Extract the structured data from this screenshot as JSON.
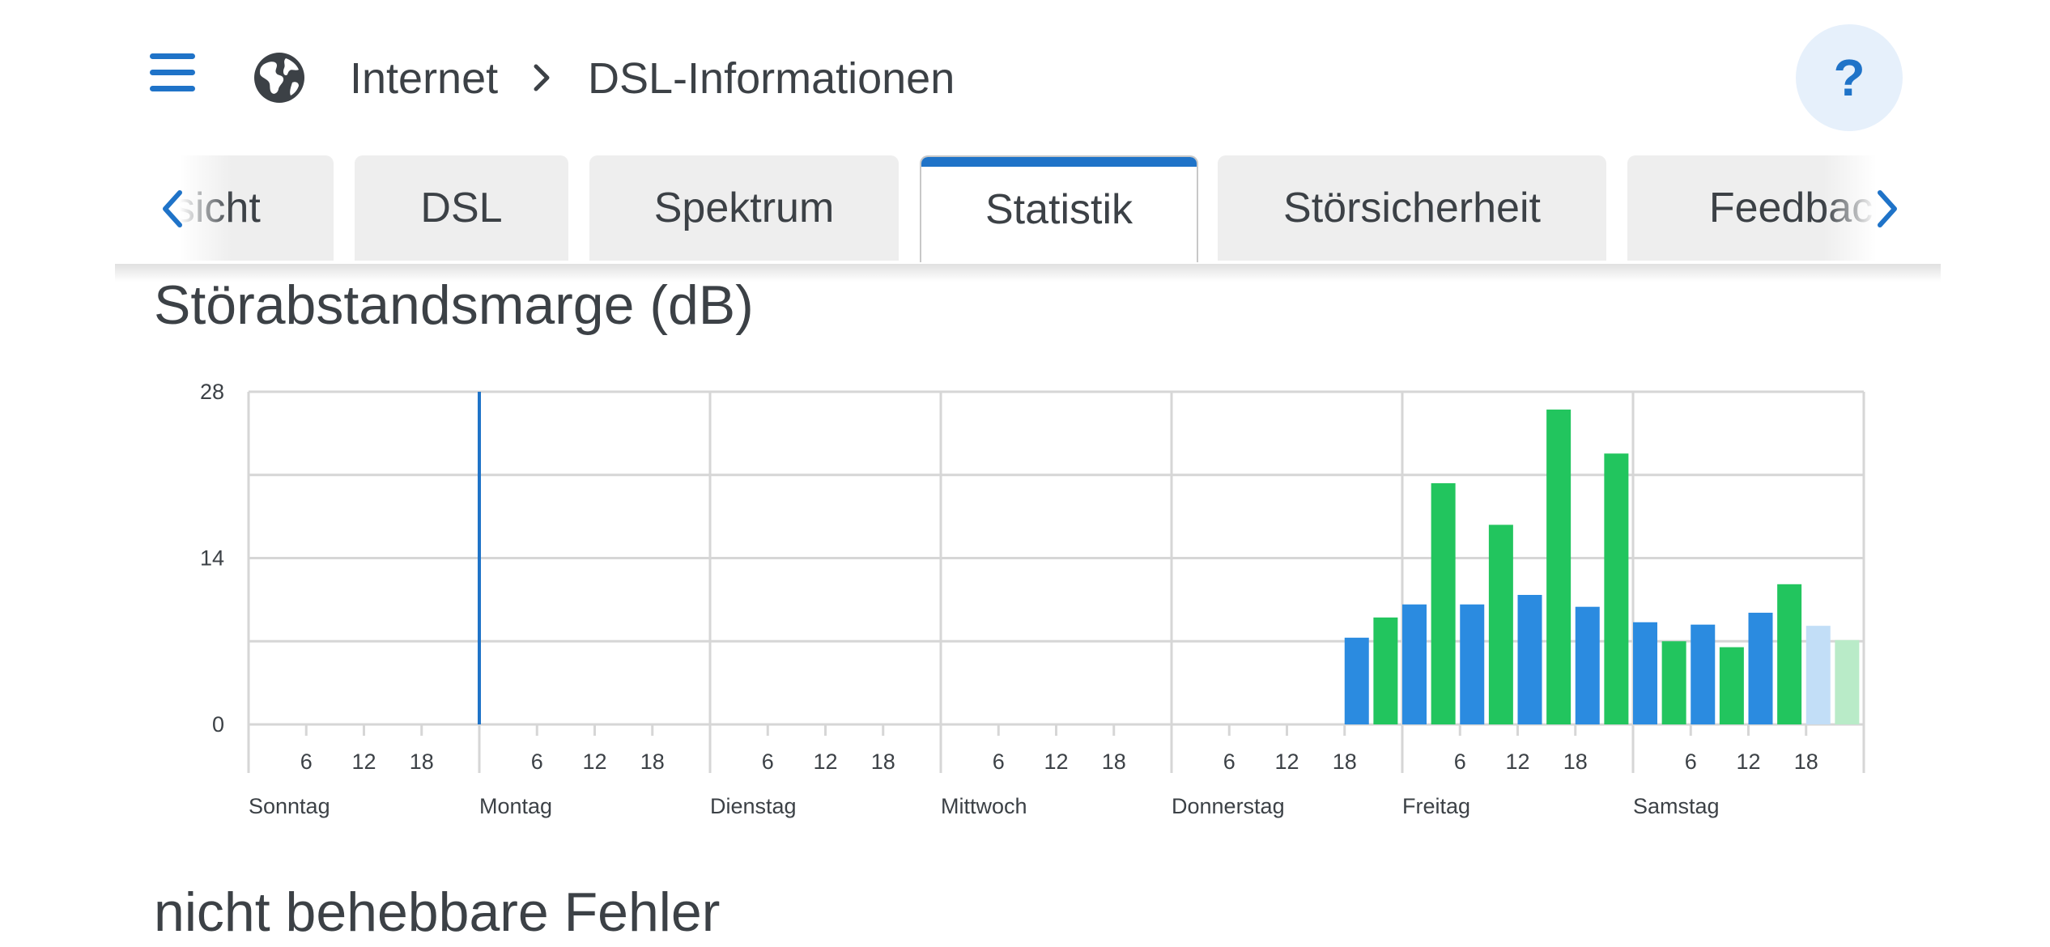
{
  "header": {
    "breadcrumb": [
      "Internet",
      "DSL-Informationen"
    ],
    "help_label": "?",
    "icons": {
      "menu": "hamburger-menu-icon",
      "app": "globe-icon",
      "separator": "chevron-right-icon"
    }
  },
  "tabs": {
    "items": [
      {
        "label": "Übersicht"
      },
      {
        "label": "DSL"
      },
      {
        "label": "Spektrum"
      },
      {
        "label": "Statistik",
        "active": true
      },
      {
        "label": "Störsicherheit"
      },
      {
        "label": "Feedback"
      }
    ],
    "scroll_left_icon": "chevron-left-icon",
    "scroll_right_icon": "chevron-right-icon"
  },
  "sections": {
    "snr_title": "Störabstandsmarge (dB)",
    "errors_title": "nicht behebbare Fehler"
  },
  "colors": {
    "accent": "#1f73c8",
    "series_green": "#22c55e",
    "series_blue": "#2b8be0",
    "series_green_light": "#b9ebc8",
    "series_blue_light": "#c2def7"
  },
  "chart_data": {
    "type": "bar",
    "title": "Störabstandsmarge (dB)",
    "ylim": [
      0,
      28
    ],
    "yticks": [
      0,
      14,
      28
    ],
    "ygrid": [
      0,
      7,
      14,
      21,
      28
    ],
    "days": [
      "Sonntag",
      "Montag",
      "Dienstag",
      "Mittwoch",
      "Donnerstag",
      "Freitag",
      "Samstag"
    ],
    "hour_ticks": [
      6,
      12,
      18
    ],
    "current_marker": {
      "day": 1,
      "hour": 0
    },
    "series": [
      {
        "color": "#22c55e",
        "values": [
          {
            "day": 4,
            "hour": 21,
            "value": 9
          },
          {
            "day": 5,
            "hour": 3,
            "value": 20.3
          },
          {
            "day": 5,
            "hour": 9,
            "value": 16.8
          },
          {
            "day": 5,
            "hour": 15,
            "value": 26.5
          },
          {
            "day": 5,
            "hour": 21,
            "value": 22.8
          },
          {
            "day": 6,
            "hour": 3,
            "value": 7
          },
          {
            "day": 6,
            "hour": 9,
            "value": 6.5
          },
          {
            "day": 6,
            "hour": 15,
            "value": 11.8
          },
          {
            "day": 6,
            "hour": 21,
            "value": 7.1,
            "faded": true
          }
        ]
      },
      {
        "color": "#2b8be0",
        "values": [
          {
            "day": 4,
            "hour": 18,
            "value": 7.3
          },
          {
            "day": 5,
            "hour": 0,
            "value": 10.1
          },
          {
            "day": 5,
            "hour": 6,
            "value": 10.1
          },
          {
            "day": 5,
            "hour": 12,
            "value": 10.9
          },
          {
            "day": 5,
            "hour": 18,
            "value": 9.9
          },
          {
            "day": 6,
            "hour": 0,
            "value": 8.6
          },
          {
            "day": 6,
            "hour": 6,
            "value": 8.4
          },
          {
            "day": 6,
            "hour": 12,
            "value": 9.4
          },
          {
            "day": 6,
            "hour": 18,
            "value": 8.3,
            "faded": true
          }
        ]
      }
    ]
  }
}
